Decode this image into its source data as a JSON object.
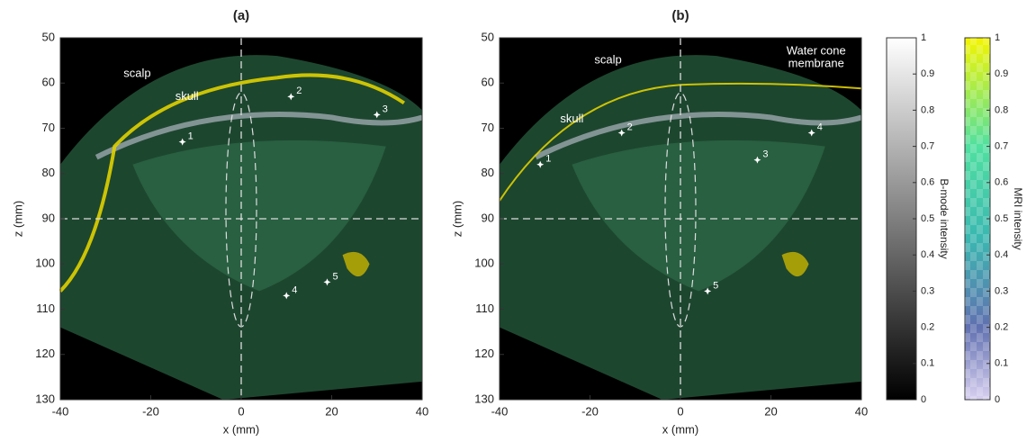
{
  "chart_data": [
    {
      "type": "image",
      "title": "(a)",
      "x_label": "x (mm)",
      "y_label": "z (mm)",
      "xlim": [
        -40,
        40
      ],
      "ylim": [
        130,
        50
      ],
      "xticks": [
        -40,
        -20,
        0,
        20,
        40
      ],
      "yticks": [
        50,
        60,
        70,
        80,
        90,
        100,
        110,
        120,
        130
      ],
      "crosshair": {
        "x": 0,
        "z": 90
      },
      "annotations": [
        {
          "text": [
            "scalp"
          ],
          "x": -23,
          "z": 58
        },
        {
          "text": [
            "skull"
          ],
          "x": -12,
          "z": 63
        }
      ],
      "points": [
        {
          "label": "1",
          "x": -13,
          "z": 73
        },
        {
          "label": "2",
          "x": 11,
          "z": 63
        },
        {
          "label": "3",
          "x": 30,
          "z": 67
        },
        {
          "label": "4",
          "x": 10,
          "z": 107
        },
        {
          "label": "5",
          "x": 19,
          "z": 104
        }
      ]
    },
    {
      "type": "image",
      "title": "(b)",
      "x_label": "x (mm)",
      "y_label": "z (mm)",
      "xlim": [
        -40,
        40
      ],
      "ylim": [
        130,
        50
      ],
      "xticks": [
        -40,
        -20,
        0,
        20,
        40
      ],
      "yticks": [
        50,
        60,
        70,
        80,
        90,
        100,
        110,
        120,
        130
      ],
      "crosshair": {
        "x": 0,
        "z": 90
      },
      "annotations": [
        {
          "text": [
            "scalp"
          ],
          "x": -16,
          "z": 55
        },
        {
          "text": [
            "skull"
          ],
          "x": -24,
          "z": 68
        },
        {
          "text": [
            "Water cone",
            "membrane"
          ],
          "x": 30,
          "z": 53
        }
      ],
      "points": [
        {
          "label": "1",
          "x": -31,
          "z": 78
        },
        {
          "label": "2",
          "x": -13,
          "z": 71
        },
        {
          "label": "3",
          "x": 17,
          "z": 77
        },
        {
          "label": "4",
          "x": 29,
          "z": 71
        },
        {
          "label": "5",
          "x": 6,
          "z": 106
        }
      ]
    },
    {
      "type": "colorbar",
      "label": "B-mode intensity",
      "ylim": [
        0,
        1
      ],
      "yticks": [
        0,
        0.1,
        0.2,
        0.3,
        0.4,
        0.5,
        0.6,
        0.7,
        0.8,
        0.9,
        1
      ]
    },
    {
      "type": "colorbar",
      "label": "MRI intensity",
      "ylim": [
        0,
        1
      ],
      "yticks": [
        0,
        0.1,
        0.2,
        0.3,
        0.4,
        0.5,
        0.6,
        0.7,
        0.8,
        0.9,
        1
      ]
    }
  ]
}
